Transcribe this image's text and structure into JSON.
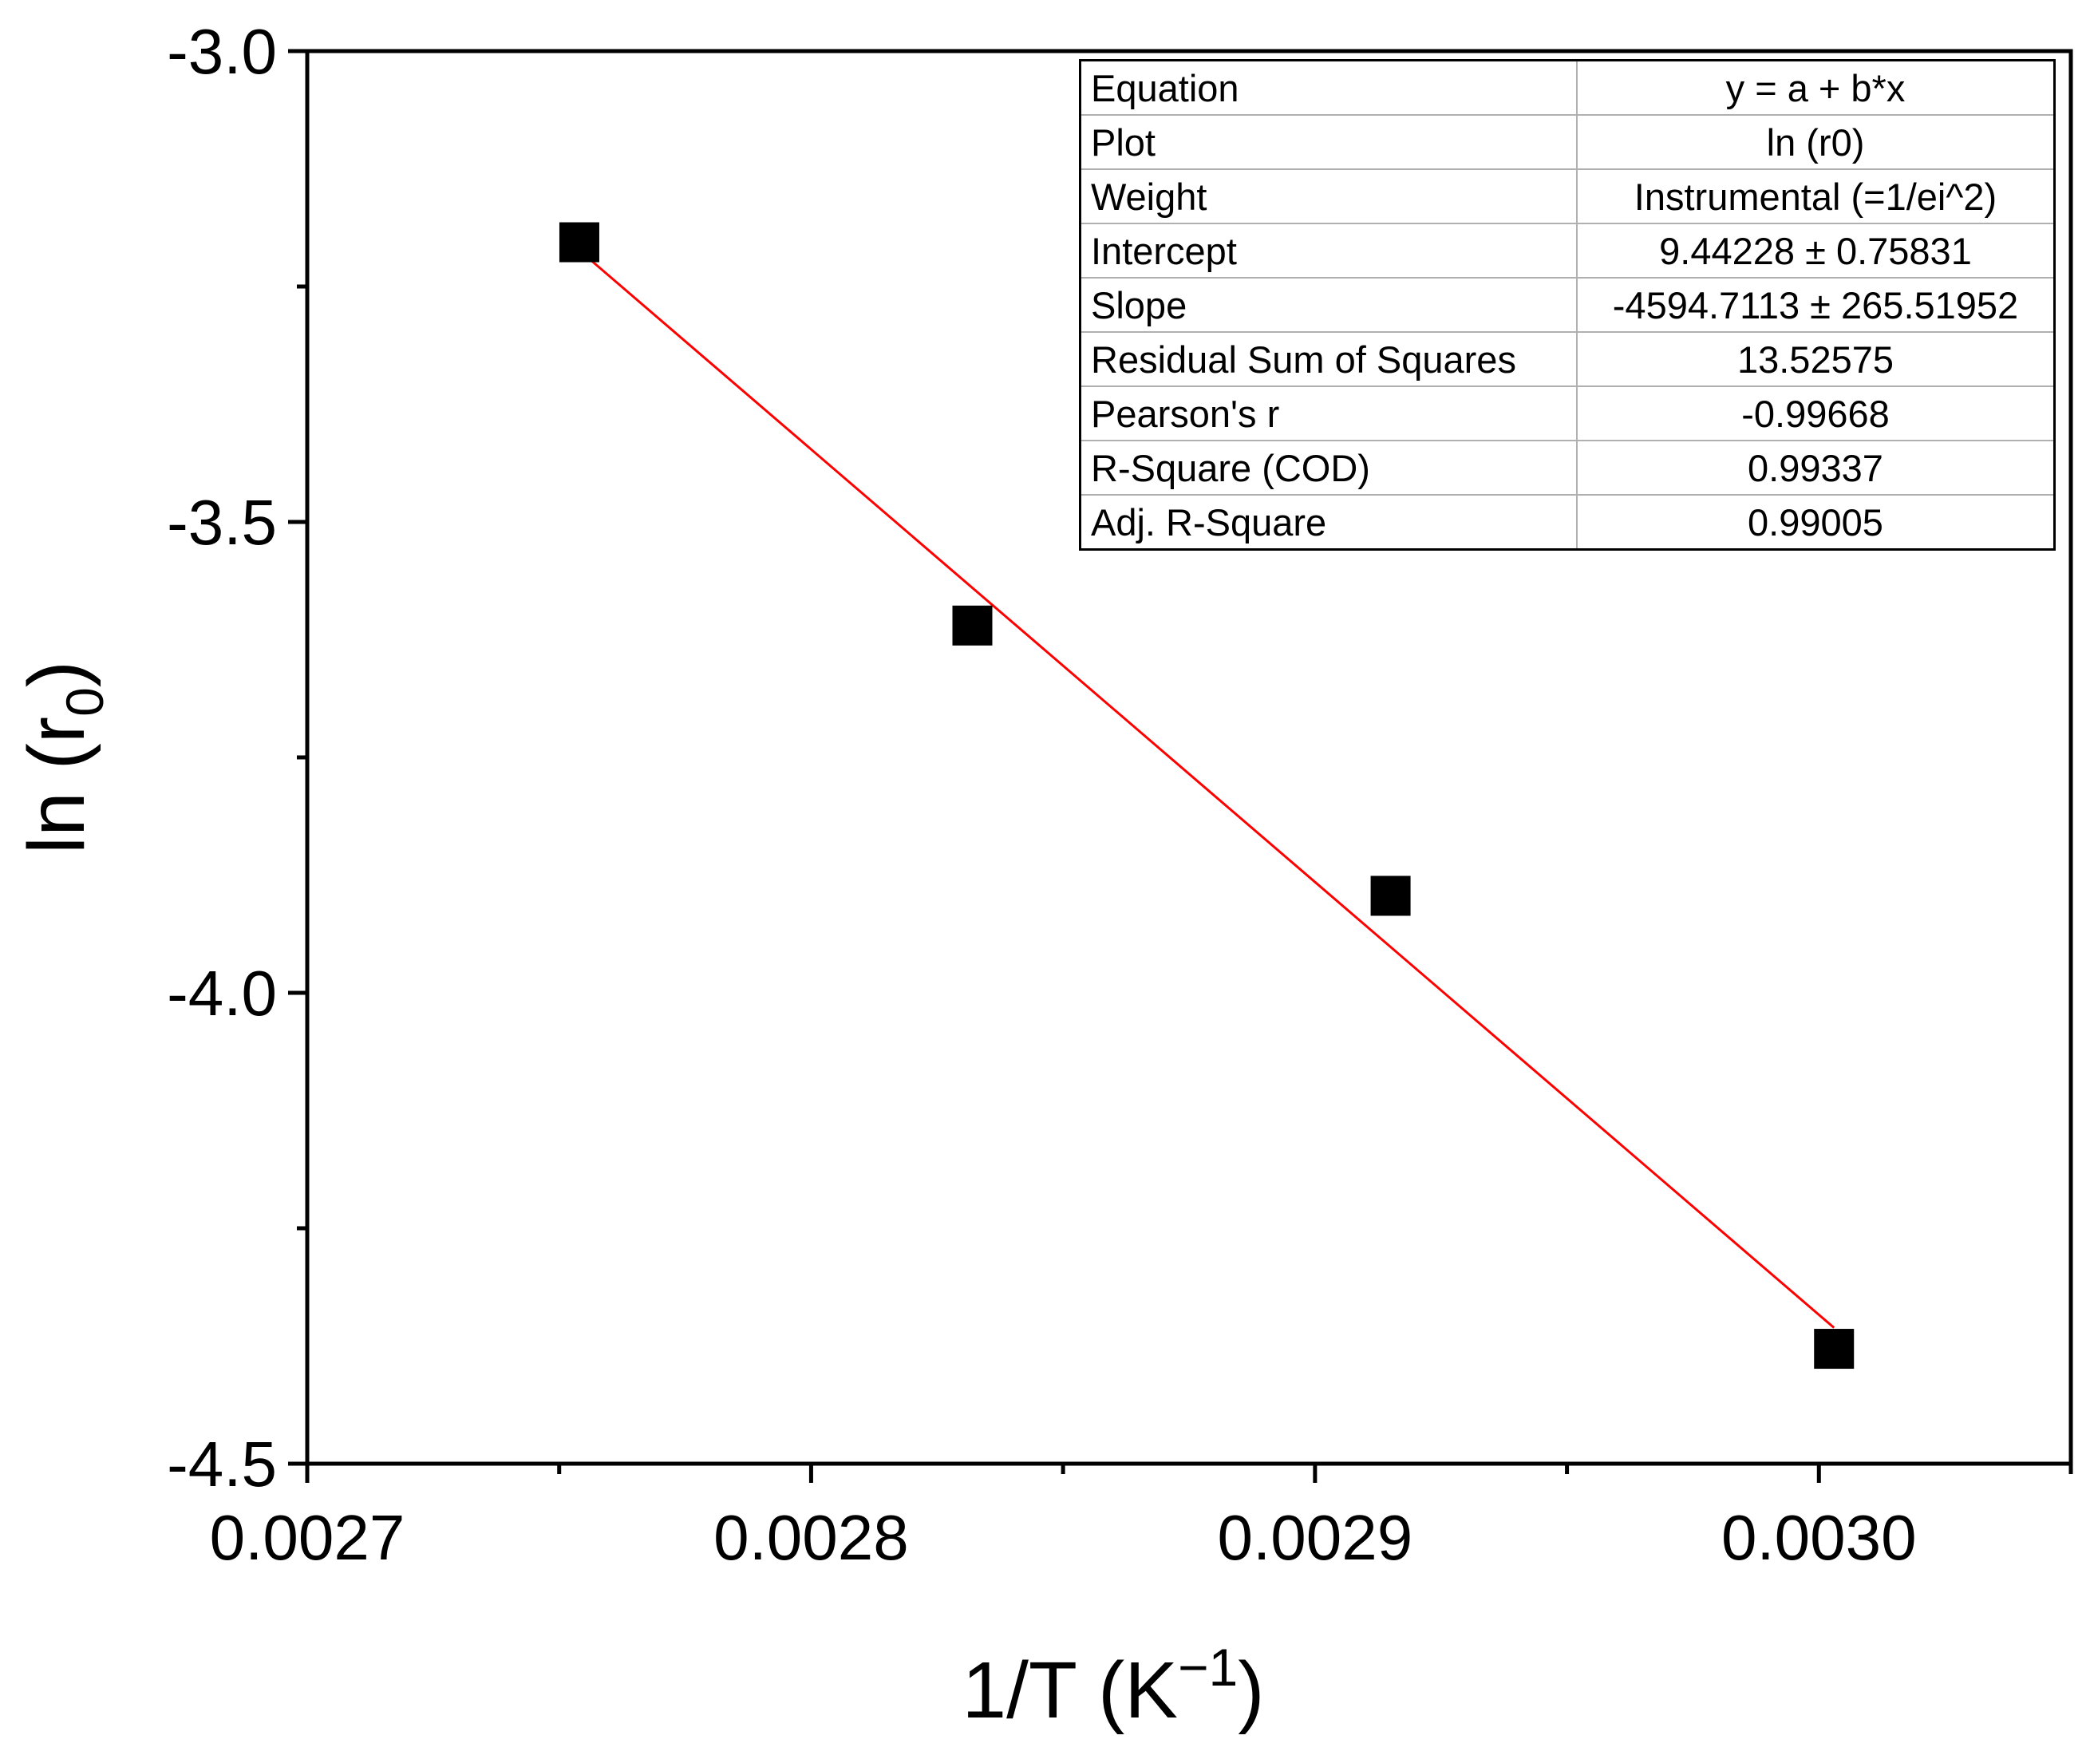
{
  "chart_data": {
    "type": "scatter",
    "title": "",
    "xlabel": "1/T (K",
    "xlabel_sup": "−1",
    "xlabel_end": ")",
    "ylabel": "ln (r",
    "ylabel_sub": "0",
    "ylabel_end": ")",
    "xlim": [
      0.0027,
      0.00305
    ],
    "ylim": [
      -4.5,
      -3.0
    ],
    "x_ticks": [
      "0.0027",
      "0.0028",
      "0.0029",
      "0.0030"
    ],
    "x_tick_values": [
      0.0027,
      0.0028,
      0.0029,
      0.003
    ],
    "x_minor_tick_values": [
      0.00275,
      0.00285,
      0.00295,
      0.00305
    ],
    "y_ticks": [
      "-3.0",
      "-3.5",
      "-4.0",
      "-4.5"
    ],
    "y_tick_values": [
      -3.0,
      -3.5,
      -4.0,
      -4.5
    ],
    "y_minor_tick_values": [
      -3.25,
      -3.75,
      -4.25
    ],
    "series": [
      {
        "name": "ln (r0)",
        "marker": "square",
        "color": "#000000",
        "x": [
          0.002754,
          0.002832,
          0.002915,
          0.003003
        ],
        "y": [
          -3.203,
          -3.61,
          -3.897,
          -4.378
        ]
      }
    ],
    "fit": {
      "color": "#ff0000",
      "intercept": 9.44228,
      "slope": -4594.7113,
      "x_range": [
        0.002754,
        0.003003
      ]
    },
    "legend": "none",
    "grid": false
  },
  "stats_table": {
    "rows": [
      {
        "label": "Equation",
        "value": "y = a + b*x"
      },
      {
        "label": "Plot",
        "value": "ln (r0)"
      },
      {
        "label": "Weight",
        "value": "Instrumental (=1/ei^2)"
      },
      {
        "label": "Intercept",
        "value": "9.44228 ± 0.75831"
      },
      {
        "label": "Slope",
        "value": "-4594.7113 ± 265.51952"
      },
      {
        "label": "Residual Sum of Squares",
        "value": "13.52575"
      },
      {
        "label": "Pearson's r",
        "value": "-0.99668"
      },
      {
        "label": "R-Square (COD)",
        "value": "0.99337"
      },
      {
        "label": "Adj. R-Square",
        "value": "0.99005"
      }
    ]
  }
}
